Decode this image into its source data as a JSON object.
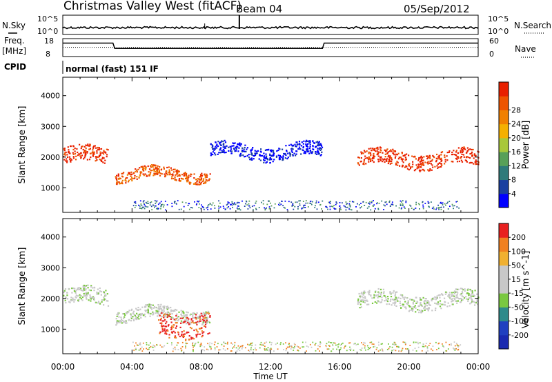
{
  "header": {
    "title": "Christmas Valley West (fitACF)",
    "beam": "Beam 04",
    "date": "05/Sep/2012"
  },
  "nsky_panel": {
    "left_label": "N.Sky",
    "right_label": "N.Search",
    "left_ticks": [
      "10^5",
      "10^0"
    ],
    "right_ticks": [
      "10^5",
      "10^0"
    ]
  },
  "freq_panel": {
    "left_label_line1": "Freq.",
    "left_label_line2": "[MHz]",
    "right_label": "Nave",
    "left_ticks": [
      "18",
      "8"
    ],
    "right_ticks": [
      "60",
      "0"
    ]
  },
  "cpid": {
    "label": "CPID",
    "text": "normal (fast) 151 IF"
  },
  "chart_data": [
    {
      "type": "line",
      "name": "Freq/Nave",
      "x": [
        0,
        2.9,
        3.0,
        15.0,
        15.1,
        24
      ],
      "freq_mhz": [
        15.5,
        15.5,
        12.5,
        12.5,
        15.5,
        15.5
      ],
      "nave": [
        31,
        31,
        31,
        31,
        31,
        31
      ],
      "xlim": [
        0,
        24
      ]
    },
    {
      "type": "heatmap",
      "ylabel": "Slant Range [km]",
      "ylim": [
        200,
        4600
      ],
      "yticks": [
        1000,
        2000,
        3000,
        4000
      ],
      "xlim": [
        0,
        24
      ],
      "colorbar_label": "Power [dB]",
      "colorbar_ticks": [
        "4",
        "8",
        "12",
        "16",
        "20",
        "24",
        "28"
      ],
      "colors": [
        "#0000ff",
        "#1a40a0",
        "#2f7a7a",
        "#58a058",
        "#a8c83a",
        "#f4b000",
        "#f08000",
        "#ee5500",
        "#e82000"
      ],
      "features": [
        {
          "time_start": 0.0,
          "time_end": 2.6,
          "range_center": 2050,
          "range_halfwidth": 260,
          "color_index": 8
        },
        {
          "time_start": 3.0,
          "time_end": 8.5,
          "range_center": 1450,
          "range_halfwidth": 180,
          "color_index": 7
        },
        {
          "time_start": 8.5,
          "time_end": 15.0,
          "range_center": 2200,
          "range_halfwidth": 220,
          "color_index": 0
        },
        {
          "time_start": 17.0,
          "time_end": 24.0,
          "range_center": 1950,
          "range_halfwidth": 250,
          "color_index": 8
        }
      ]
    },
    {
      "type": "heatmap",
      "ylabel": "Slant Range [km]",
      "xlabel": "Time UT",
      "ylim": [
        200,
        4600
      ],
      "yticks": [
        1000,
        2000,
        3000,
        4000
      ],
      "xlim": [
        0,
        24
      ],
      "xticks": [
        "00:00",
        "04:00",
        "08:00",
        "12:00",
        "16:00",
        "20:00",
        "00:00"
      ],
      "colorbar_label": "Velocity [m s^-1]",
      "colorbar_ticks": [
        "200",
        "100",
        "50",
        "15",
        "-15",
        "-50",
        "-100",
        "-200"
      ],
      "colors": [
        "#1a2ab0",
        "#2040c0",
        "#2e8a8a",
        "#7ac840",
        "#c8c8c8",
        "#c8c8c8",
        "#f0b030",
        "#f08020",
        "#e82020"
      ],
      "features": [
        {
          "time_start": 0.0,
          "time_end": 2.6,
          "range_center": 2050,
          "range_halfwidth": 260,
          "color_index": 4
        },
        {
          "time_start": 3.0,
          "time_end": 8.5,
          "range_center": 1500,
          "range_halfwidth": 200,
          "color_index": 4
        },
        {
          "time_start": 5.5,
          "time_end": 8.5,
          "range_center": 1200,
          "range_halfwidth": 400,
          "color_index": 8
        },
        {
          "time_start": 17.0,
          "time_end": 24.0,
          "range_center": 1950,
          "range_halfwidth": 250,
          "color_index": 4
        }
      ]
    }
  ]
}
